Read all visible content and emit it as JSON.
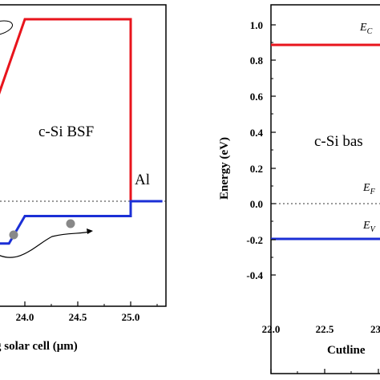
{
  "chart_data": [
    {
      "type": "line",
      "panel": "left",
      "xlabel": "g solar cell (μm)",
      "ylabel": "",
      "xlim": [
        23.55,
        25.3
      ],
      "x_ticks": [
        "24.0",
        "24.5",
        "25.0"
      ],
      "annotations": {
        "region": "c-Si BSF",
        "contact": "Al"
      },
      "series": [
        {
          "color": "#e8141c",
          "points": [
            [
              23.5,
              0.38
            ],
            [
              23.75,
              0.5
            ],
            [
              24.0,
              0.86
            ],
            [
              25.0,
              0.86
            ],
            [
              25.0,
              0.0
            ]
          ]
        },
        {
          "color": "#1b2fd6",
          "points": [
            [
              23.6,
              -0.2
            ],
            [
              23.85,
              -0.2
            ],
            [
              24.0,
              -0.07
            ],
            [
              25.0,
              -0.07
            ],
            [
              25.0,
              0.0
            ],
            [
              25.3,
              0.0
            ]
          ]
        },
        {
          "style": "dotted",
          "color": "#333333",
          "points": [
            [
              23.55,
              0.0
            ],
            [
              25.3,
              0.0
            ]
          ]
        }
      ]
    },
    {
      "type": "line",
      "panel": "right",
      "xlabel": "Cutline",
      "ylabel": "Energy (eV)",
      "xlim": [
        22.0,
        23.2
      ],
      "ylim": [
        -0.4,
        1.1
      ],
      "x_ticks": [
        "22.0",
        "22.5",
        "23"
      ],
      "y_ticks": [
        "1.0",
        "0.8",
        "0.6",
        "0.4",
        "0.2",
        "0.0",
        "-0.2",
        "-0.4"
      ],
      "annotations": {
        "region": "c-Si bas",
        "ec": {
          "main": "E",
          "sub": "C"
        },
        "ef": {
          "main": "E",
          "sub": "F"
        },
        "ev": {
          "main": "E",
          "sub": "V"
        }
      },
      "series": [
        {
          "name": "E_C",
          "color": "#e8141c",
          "points": [
            [
              22.0,
              0.9
            ],
            [
              23.2,
              0.9
            ]
          ]
        },
        {
          "name": "E_F",
          "style": "dotted",
          "color": "#333333",
          "points": [
            [
              22.0,
              0.0
            ],
            [
              23.2,
              0.0
            ]
          ]
        },
        {
          "name": "E_V",
          "color": "#1b2fd6",
          "points": [
            [
              22.0,
              -0.18
            ],
            [
              23.2,
              -0.18
            ]
          ]
        }
      ]
    }
  ]
}
